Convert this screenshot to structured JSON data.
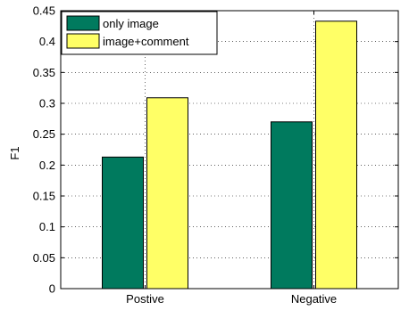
{
  "chart_data": {
    "type": "bar",
    "title": "",
    "xlabel": "",
    "ylabel": "F1",
    "ylim": [
      0,
      0.45
    ],
    "yticks": [
      0,
      0.05,
      0.1,
      0.15,
      0.2,
      0.25,
      0.3,
      0.35,
      0.4,
      0.45
    ],
    "ytick_labels": [
      "0",
      "0.05",
      "0.1",
      "0.15",
      "0.2",
      "0.25",
      "0.3",
      "0.35",
      "0.4",
      "0.45"
    ],
    "categories": [
      "Postive",
      "Negative"
    ],
    "series": [
      {
        "name": "only image",
        "values": [
          0.213,
          0.27
        ],
        "color": "#007A5E"
      },
      {
        "name": "image+comment",
        "values": [
          0.309,
          0.433
        ],
        "color": "#FFFF66"
      }
    ],
    "grid": true,
    "grid_style": "dotted",
    "legend_position": "top-left"
  }
}
